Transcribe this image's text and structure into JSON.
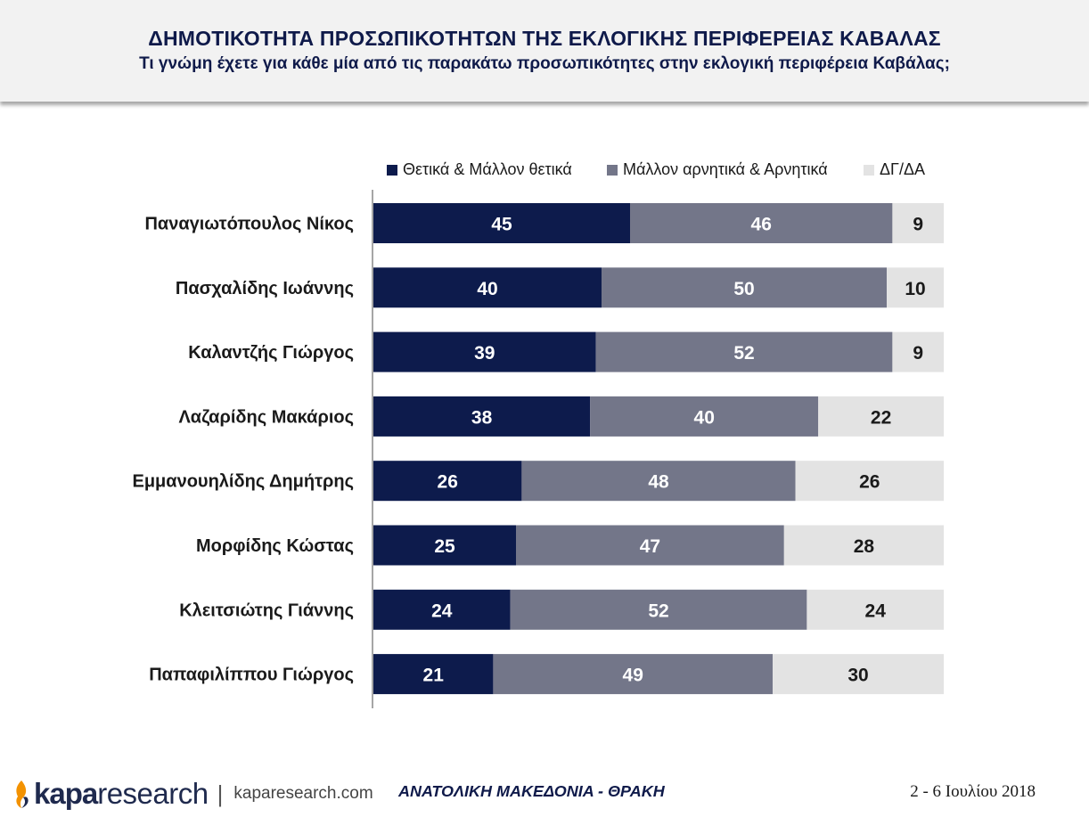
{
  "header": {
    "title": "ΔΗΜΟΤΙΚΟΤΗΤΑ ΠΡΟΣΩΠΙΚΟΤΗΤΩΝ ΤΗΣ ΕΚΛΟΓΙΚΗΣ ΠΕΡΙΦΕΡΕΙΑΣ ΚΑΒΑΛΑΣ",
    "subtitle": "Τι γνώμη έχετε για κάθε μία από τις παρακάτω προσωπικότητες στην εκλογική περιφέρεια Καβάλας;"
  },
  "chart_data": {
    "type": "bar",
    "orientation": "horizontal",
    "stacked": true,
    "categories": [
      "Παναγιωτόπουλος Νίκος",
      "Πασχαλίδης Ιωάννης",
      "Καλαντζής Γιώργος",
      "Λαζαρίδης Μακάριος",
      "Εμμανουηλίδης Δημήτρης",
      "Μορφίδης Κώστας",
      "Κλειτσιώτης Γιάννης",
      "Παπαφιλίππου Γιώργος"
    ],
    "series": [
      {
        "name": "Θετικά & Μάλλον θετικά",
        "color": "#0d1b4c",
        "label_color": "#ffffff",
        "values": [
          45,
          40,
          39,
          38,
          26,
          25,
          24,
          21
        ]
      },
      {
        "name": "Μάλλον αρνητικά & Αρνητικά",
        "color": "#737689",
        "label_color": "#ffffff",
        "values": [
          46,
          50,
          52,
          40,
          48,
          47,
          52,
          49
        ]
      },
      {
        "name": "ΔΓ/ΔΑ",
        "color": "#e3e3e3",
        "label_color": "#1a1a1a",
        "values": [
          9,
          10,
          9,
          22,
          26,
          28,
          24,
          30
        ]
      }
    ],
    "xlim": [
      0,
      100
    ],
    "legend_position": "top",
    "grid": false
  },
  "footer": {
    "logo_kapa": "kapa",
    "logo_research": "research",
    "separator": "|",
    "website": "kaparesearch.com",
    "region": "ΑΝΑΤΟΛΙΚΗ ΜΑΚΕΔΟΝΙΑ - ΘΡΑΚΗ",
    "date": "2 - 6 Ιουλίου 2018"
  }
}
